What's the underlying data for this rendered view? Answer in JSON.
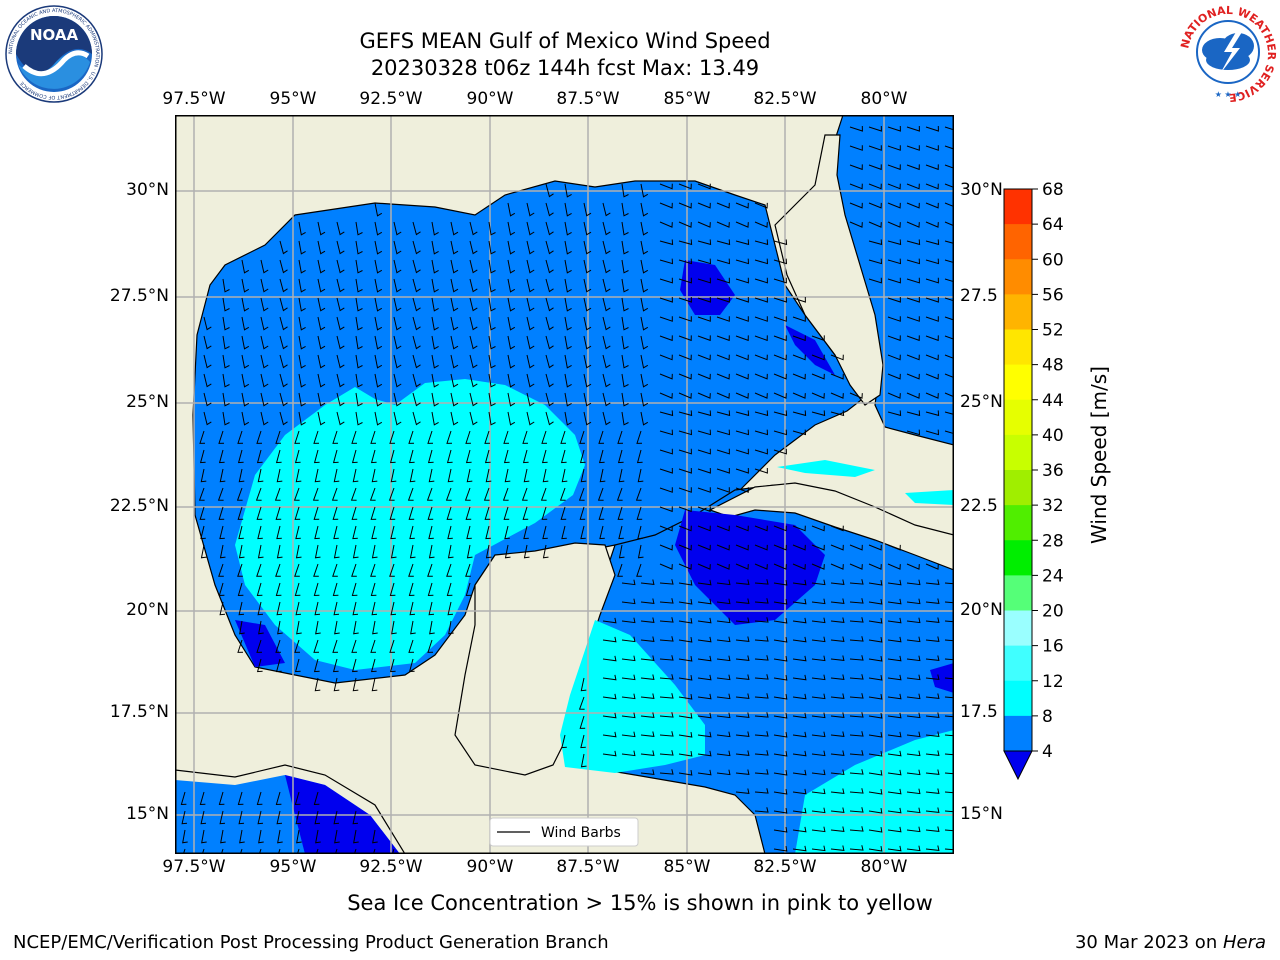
{
  "header": {
    "title_line1": "GEFS MEAN Gulf of Mexico Wind Speed",
    "title_line2": "20230328 t06z 144h fcst   Max: 13.49"
  },
  "logos": {
    "noaa_text": "NOAA",
    "noaa_ring": "NATIONAL OCEANIC AND ATMOSPHERIC ADMINISTRATION · U.S. DEPARTMENT OF COMMERCE",
    "nws_ring": "NATIONAL WEATHER SERVICE"
  },
  "map": {
    "lon_labels": [
      "97.5°W",
      "95°W",
      "92.5°W",
      "90°W",
      "87.5°W",
      "85°W",
      "82.5°W",
      "80°W"
    ],
    "lat_labels": [
      "30°N",
      "27.5°N",
      "25°N",
      "22.5°N",
      "20°N",
      "17.5°N",
      "15°N"
    ],
    "right_lat_labels": [
      "30°N",
      "27.5",
      "25°N",
      "22.5",
      "20°N",
      "17.5",
      "15°N"
    ],
    "legend_label": "Wind Barbs",
    "colors": {
      "land": "#efefdc",
      "ocean": "#0080ff"
    }
  },
  "colorbar": {
    "label": "Wind Speed [m/s]",
    "ticks": [
      "4",
      "8",
      "12",
      "16",
      "20",
      "24",
      "28",
      "32",
      "36",
      "40",
      "44",
      "48",
      "52",
      "56",
      "60",
      "64",
      "68"
    ],
    "colors": [
      "#0080ff",
      "#00ffff",
      "#40ffff",
      "#9affff",
      "#55ff78",
      "#00ee00",
      "#50ee00",
      "#a0ee00",
      "#c8ff00",
      "#e6ff00",
      "#ffff00",
      "#ffe600",
      "#ffb400",
      "#ff8c00",
      "#ff6400",
      "#ff3200"
    ],
    "under_color": "#0000ee"
  },
  "chart_data": {
    "type": "heatmap",
    "title": "GEFS MEAN Gulf of Mexico Wind Speed",
    "subtitle": "20230328 t06z 144h fcst   Max: 13.49",
    "max": 13.49,
    "units": "m/s",
    "levels": [
      4,
      8,
      12,
      16,
      20,
      24,
      28,
      32,
      36,
      40,
      44,
      48,
      52,
      56,
      60,
      64,
      68
    ],
    "lon_range": [
      -98,
      -78.2
    ],
    "lat_range": [
      14,
      31.8
    ]
  },
  "footer": {
    "note": "Sea Ice Concentration > 15% is shown in pink to yellow",
    "credit": "NCEP/EMC/Verification Post Processing Product Generation Branch",
    "date": "30 Mar 2023 on ",
    "machine": "Hera"
  }
}
